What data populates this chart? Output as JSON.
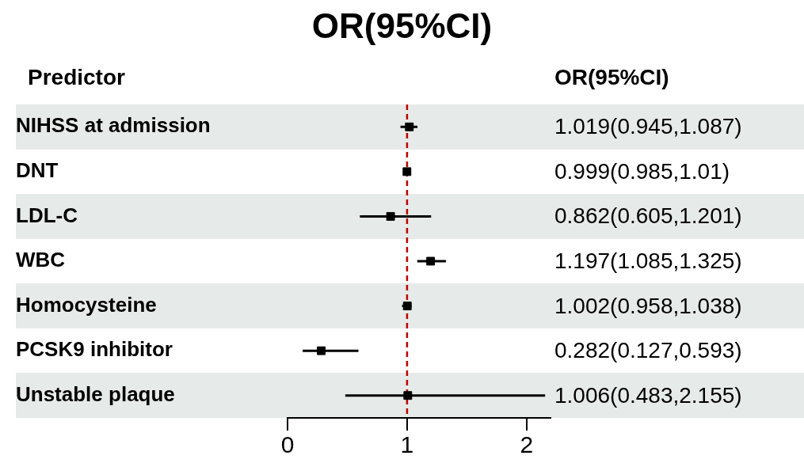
{
  "chart_data": {
    "type": "scatter",
    "orientation": "horizontal",
    "title": "OR(95%CI)",
    "ylabel": "Predictor",
    "annotations": [
      "OR(95%CI)",
      "1.019(0.945,1.087)",
      "0.999(0.985,1.01)",
      "0.862(0.605,1.201)",
      "1.197(1.085,1.325)",
      "1.002(0.958,1.038)",
      "0.282(0.127,0.593)",
      "1.006(0.483,2.155)"
    ],
    "categories": [
      "NIHSS at admission",
      "DNT",
      "LDL-C",
      "WBC",
      "Homocysteine",
      "PCSK9 inhibitor",
      "Unstable plaque"
    ],
    "values": [
      1.019,
      0.999,
      0.862,
      1.197,
      1.002,
      0.282,
      1.006
    ],
    "errors": [
      [
        0.945,
        1.087
      ],
      null,
      [
        0.605,
        1.201
      ],
      [
        1.085,
        1.325
      ],
      [
        0.958,
        1.038
      ],
      [
        0.127,
        0.593
      ],
      [
        0.483,
        2.155
      ]
    ],
    "color": "#000000",
    "marker": "square",
    "xlim": [
      0,
      2.2
    ],
    "xticks": [
      0,
      1,
      2
    ],
    "ref_lines": [
      {
        "axis": "x",
        "value": 1,
        "color": "#c00000",
        "line_style": "dashed"
      }
    ]
  }
}
